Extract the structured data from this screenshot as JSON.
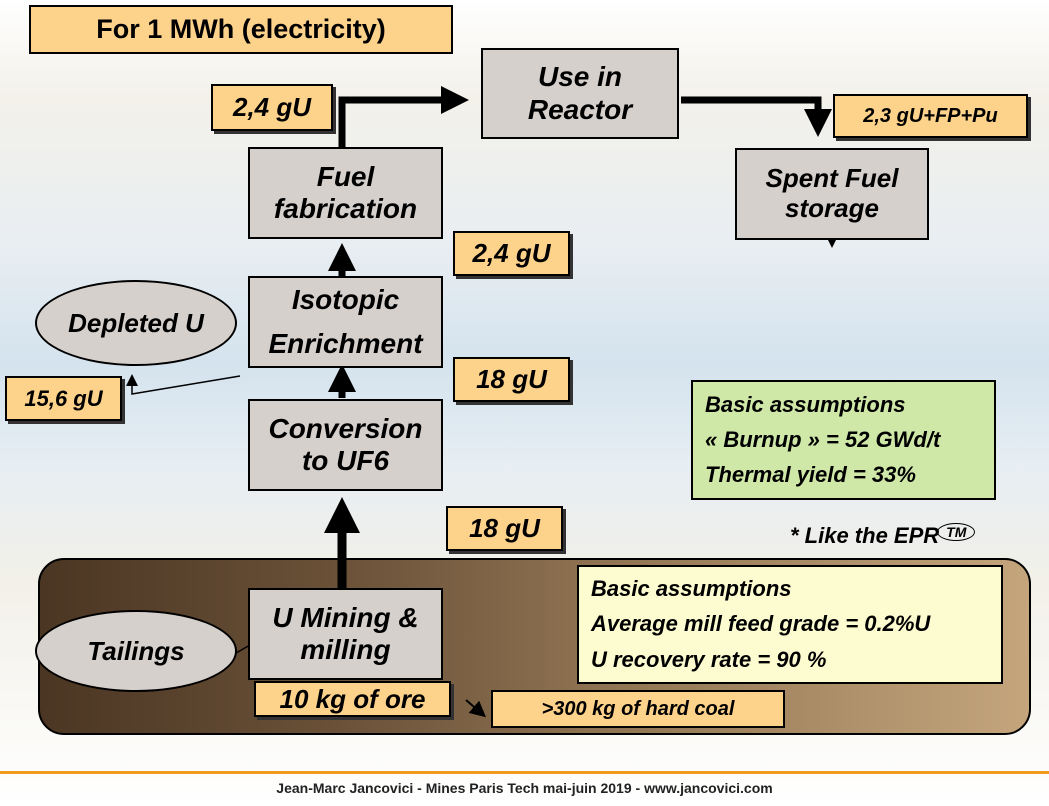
{
  "title": "For 1 MWh (electricity)",
  "boxes": {
    "reactor": "Use in Reactor",
    "fuel_fabrication": "Fuel fabrication",
    "enrichment_line1": "Isotopic",
    "enrichment_line2": "Enrichment",
    "conversion": "Conversion to UF6",
    "mining": "U Mining & milling",
    "spent_fuel": "Spent Fuel storage"
  },
  "ellipses": {
    "depleted": "Depleted U",
    "tailings": "Tailings"
  },
  "quantities": {
    "to_reactor": "2,4 gU",
    "spent": "2,3 gU+FP+Pu",
    "after_enrichment": "2,4 gU",
    "to_enrichment": "18 gU",
    "depleted": "15,6 gU",
    "to_conversion": "18 gU",
    "ore": "10 kg of ore",
    "coal": ">300 kg of hard coal"
  },
  "assumptions_reactor": {
    "heading": "Basic assumptions",
    "burnup": "« Burnup » = 52 GWd/t",
    "yield": "Thermal yield = 33%"
  },
  "epr_note": "* Like the EPR",
  "epr_tm": "TM",
  "assumptions_mining": {
    "heading": "Basic assumptions",
    "grade": "Average mill feed grade = 0.2%U",
    "recovery": "U recovery rate = 90 %"
  },
  "footer": "Jean-Marc Jancovici - Mines Paris Tech mai-juin 2019 - www.jancovici.com",
  "colors": {
    "tag": "#fdd28b",
    "box": "#d6d0cd",
    "assumption_green": "#cfe8a8",
    "assumption_yellow": "#fdfbd0",
    "footer_line": "#f29a1c"
  }
}
